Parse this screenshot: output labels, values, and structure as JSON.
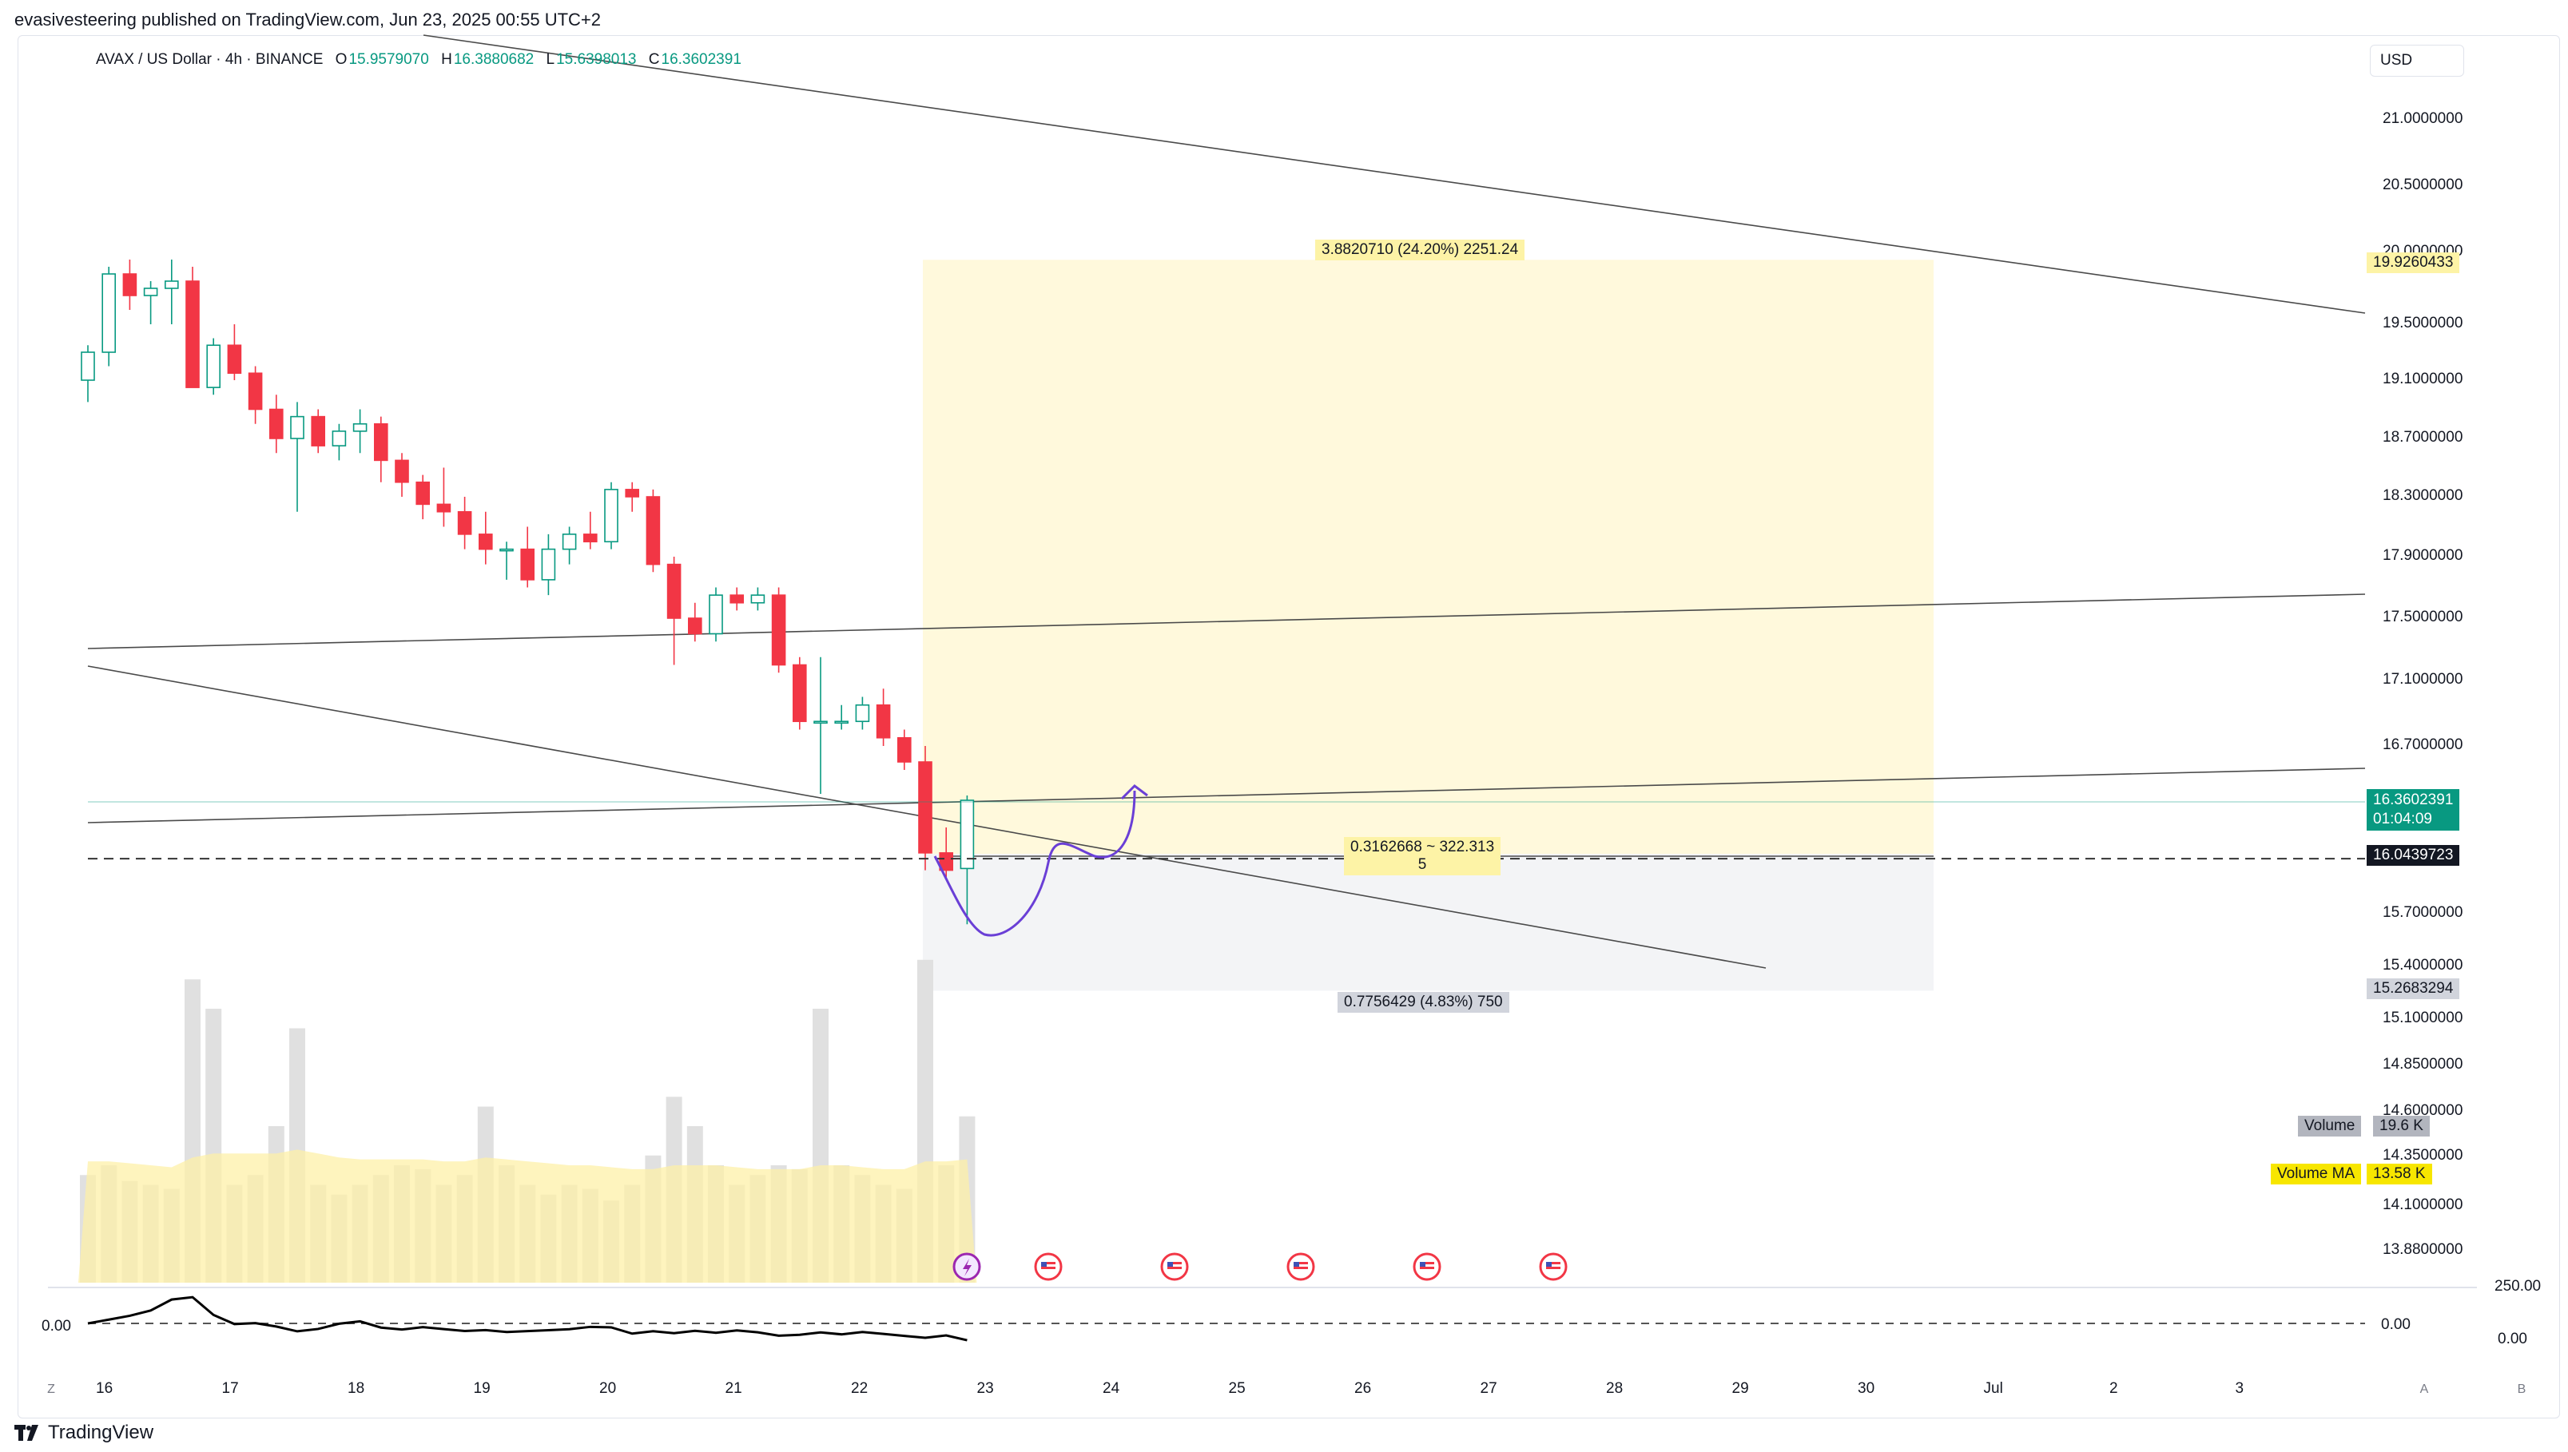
{
  "publish_line": "evasivesteering published on TradingView.com, Jun 23, 2025 00:55 UTC+2",
  "legend": {
    "symbol": "AVAX / US Dollar · 4h · BINANCE",
    "o_key": "O",
    "o": "15.9579070",
    "h_key": "H",
    "h": "16.3880682",
    "l_key": "L",
    "l": "15.6398013",
    "c_key": "C",
    "c": "16.3602391"
  },
  "currency_button": "USD",
  "price_axis": [
    "21.0000000",
    "20.5000000",
    "20.0000000",
    "19.5000000",
    "19.1000000",
    "18.7000000",
    "18.3000000",
    "17.9000000",
    "17.5000000",
    "17.1000000",
    "16.7000000",
    "15.7000000",
    "15.4000000",
    "15.1000000",
    "14.8500000",
    "14.6000000",
    "14.3500000",
    "14.1000000",
    "13.8800000"
  ],
  "time_axis": [
    "16",
    "17",
    "18",
    "19",
    "20",
    "21",
    "22",
    "23",
    "24",
    "25",
    "26",
    "27",
    "28",
    "29",
    "30",
    "Jul",
    "2",
    "3"
  ],
  "tags": {
    "target": "19.9260433",
    "last_price": "16.3602391",
    "countdown": "01:04:09",
    "entry": "16.0439723",
    "stop": "15.2683294",
    "volume_label": "Volume",
    "volume_value": "19.6 K",
    "volume_ma_label": "Volume MA",
    "volume_ma_value": "13.58 K"
  },
  "position_labels": {
    "profit": "3.8820710 (24.20%) 2251.24",
    "entry": "0.3162668 ~ 322.313",
    "entry_sub": "5",
    "loss": "0.7756429 (4.83%) 750"
  },
  "oscillator": {
    "left_label": "0.00",
    "right_top": "250.00",
    "right_mid": "0.00",
    "right_bottom": "0.00"
  },
  "corner_buttons": {
    "z": "Z",
    "a": "A",
    "b": "B"
  },
  "brand": "TradingView",
  "colors": {
    "up": "#089981",
    "down": "#f23645",
    "profit_zone": "#fff9dc",
    "loss_zone": "#f3f4f6",
    "drawing": "#6a3fd6",
    "volume": "#e0e0e0",
    "volume_ma": "#fdf0a8"
  },
  "chart_data": {
    "type": "candlestick",
    "price_range": [
      13.8,
      21.2
    ],
    "candles": [
      [
        19.1,
        19.35,
        18.95,
        19.3
      ],
      [
        19.3,
        19.9,
        19.2,
        19.85
      ],
      [
        19.85,
        19.95,
        19.6,
        19.7
      ],
      [
        19.7,
        19.8,
        19.5,
        19.75
      ],
      [
        19.75,
        19.95,
        19.5,
        19.8
      ],
      [
        19.8,
        19.9,
        19.05,
        19.05
      ],
      [
        19.05,
        19.4,
        19.0,
        19.35
      ],
      [
        19.35,
        19.5,
        19.1,
        19.15
      ],
      [
        19.15,
        19.2,
        18.8,
        18.9
      ],
      [
        18.9,
        19.0,
        18.6,
        18.7
      ],
      [
        18.7,
        18.95,
        18.2,
        18.85
      ],
      [
        18.85,
        18.9,
        18.6,
        18.65
      ],
      [
        18.65,
        18.8,
        18.55,
        18.75
      ],
      [
        18.75,
        18.9,
        18.6,
        18.8
      ],
      [
        18.8,
        18.85,
        18.4,
        18.55
      ],
      [
        18.55,
        18.6,
        18.3,
        18.4
      ],
      [
        18.4,
        18.45,
        18.15,
        18.25
      ],
      [
        18.25,
        18.5,
        18.1,
        18.2
      ],
      [
        18.2,
        18.3,
        17.95,
        18.05
      ],
      [
        18.05,
        18.2,
        17.85,
        17.95
      ],
      [
        17.95,
        18.0,
        17.75,
        17.95
      ],
      [
        17.95,
        18.1,
        17.7,
        17.75
      ],
      [
        17.75,
        18.05,
        17.65,
        17.95
      ],
      [
        17.95,
        18.1,
        17.85,
        18.05
      ],
      [
        18.05,
        18.2,
        17.95,
        18.0
      ],
      [
        18.0,
        18.4,
        17.95,
        18.35
      ],
      [
        18.35,
        18.4,
        18.2,
        18.3
      ],
      [
        18.3,
        18.35,
        17.8,
        17.85
      ],
      [
        17.85,
        17.9,
        17.2,
        17.5
      ],
      [
        17.5,
        17.6,
        17.35,
        17.4
      ],
      [
        17.4,
        17.7,
        17.35,
        17.65
      ],
      [
        17.65,
        17.7,
        17.55,
        17.6
      ],
      [
        17.6,
        17.7,
        17.55,
        17.65
      ],
      [
        17.65,
        17.7,
        17.15,
        17.2
      ],
      [
        17.2,
        17.25,
        16.8,
        16.85
      ],
      [
        16.85,
        17.25,
        16.4,
        16.85
      ],
      [
        16.85,
        16.95,
        16.8,
        16.85
      ],
      [
        16.85,
        17.0,
        16.8,
        16.95
      ],
      [
        16.95,
        17.05,
        16.7,
        16.75
      ],
      [
        16.75,
        16.8,
        16.55,
        16.6
      ],
      [
        16.6,
        16.7,
        15.95,
        16.05
      ],
      [
        16.05,
        16.2,
        15.9,
        15.95
      ],
      [
        15.96,
        16.39,
        15.64,
        16.36
      ]
    ],
    "volumes": [
      0.55,
      0.6,
      0.52,
      0.5,
      0.48,
      1.55,
      1.4,
      0.5,
      0.55,
      0.8,
      1.3,
      0.5,
      0.45,
      0.5,
      0.55,
      0.6,
      0.58,
      0.5,
      0.55,
      0.9,
      0.6,
      0.5,
      0.45,
      0.5,
      0.48,
      0.42,
      0.5,
      0.65,
      0.95,
      0.8,
      0.6,
      0.5,
      0.55,
      0.6,
      0.58,
      1.4,
      0.6,
      0.55,
      0.5,
      0.48,
      1.65,
      0.6,
      0.85
    ],
    "volume_ma": [
      0.62,
      0.62,
      0.61,
      0.6,
      0.59,
      0.64,
      0.66,
      0.66,
      0.66,
      0.66,
      0.68,
      0.66,
      0.64,
      0.63,
      0.63,
      0.63,
      0.63,
      0.62,
      0.62,
      0.64,
      0.63,
      0.62,
      0.61,
      0.6,
      0.6,
      0.59,
      0.58,
      0.58,
      0.6,
      0.6,
      0.6,
      0.59,
      0.58,
      0.58,
      0.58,
      0.6,
      0.6,
      0.59,
      0.58,
      0.58,
      0.62,
      0.62,
      0.63
    ],
    "position": {
      "entry": 16.0439723,
      "target": 19.9260433,
      "stop": 15.2683294
    }
  }
}
